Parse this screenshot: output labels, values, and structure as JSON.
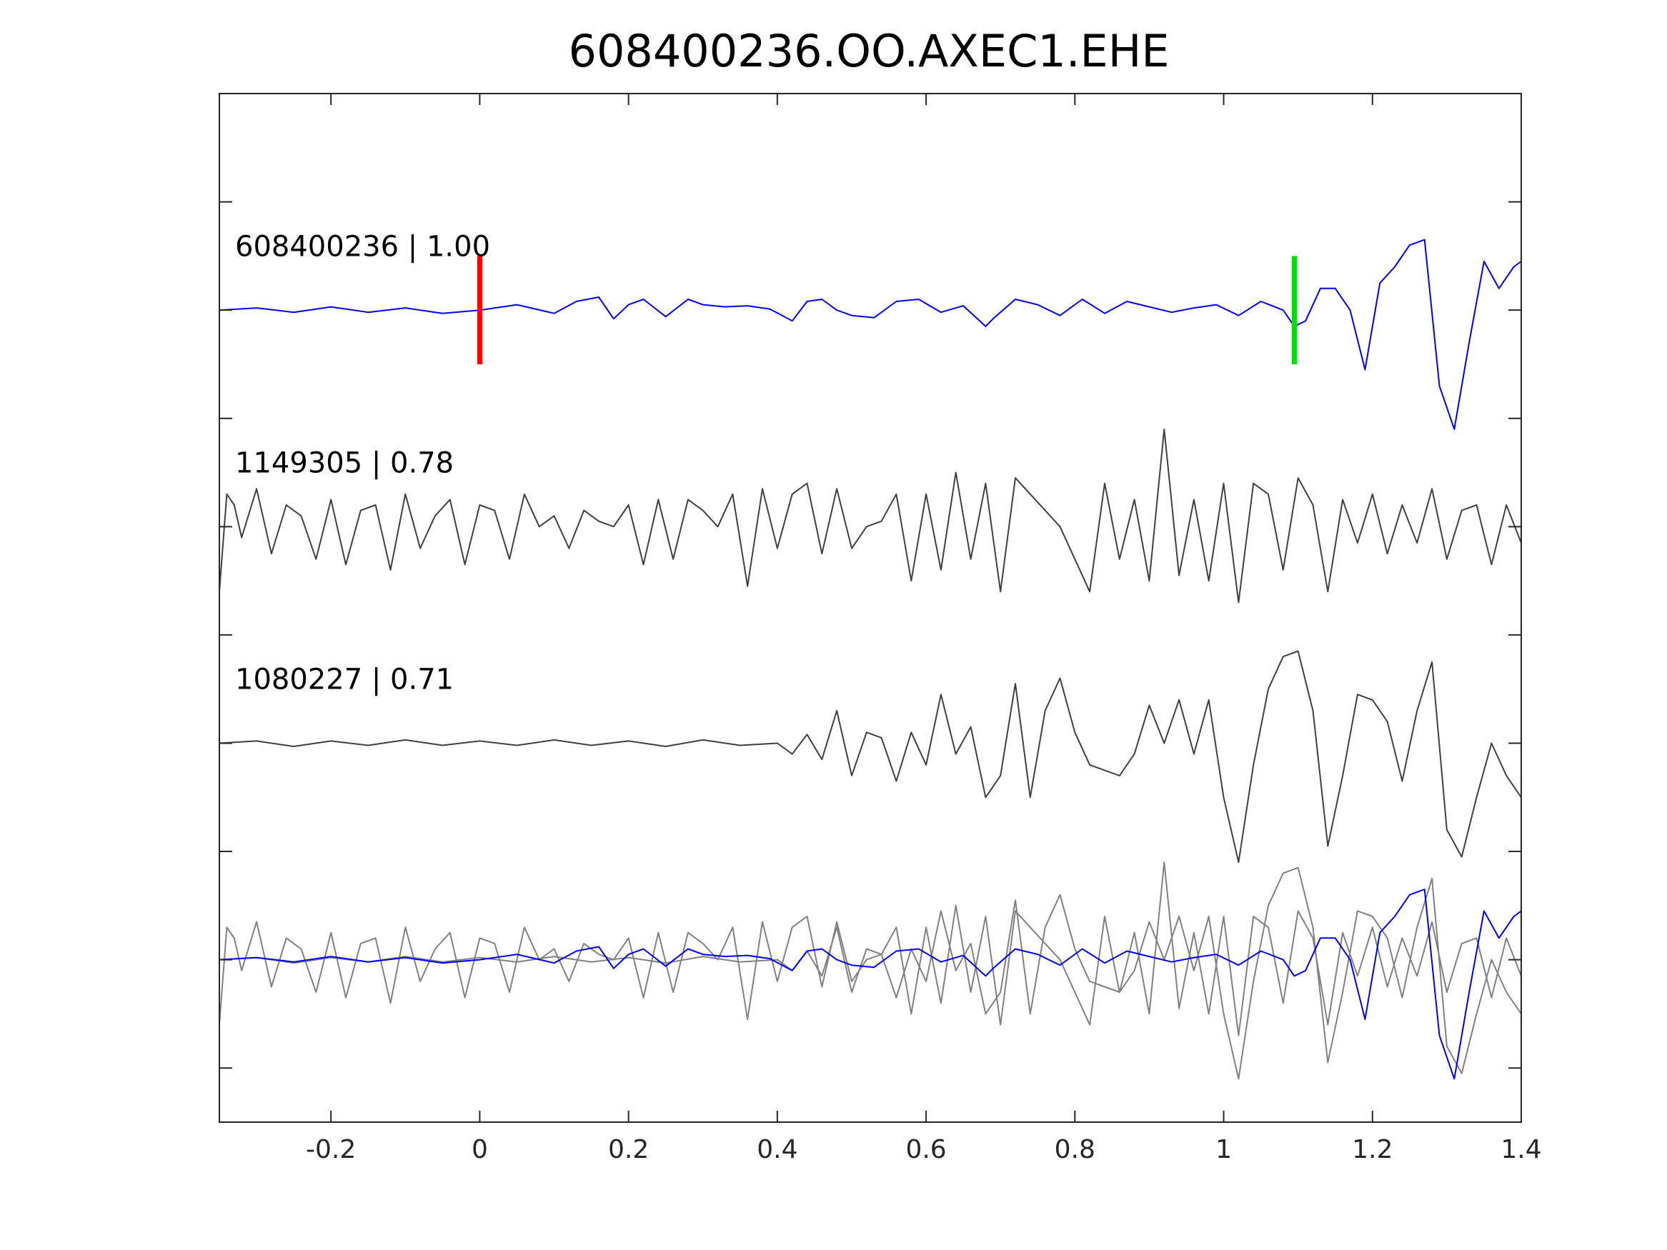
{
  "chart_data": {
    "type": "line",
    "title": "608400236.OO.AXEC1.EHE",
    "xlabel": "",
    "ylabel": "",
    "xlim": [
      -0.35,
      1.4
    ],
    "ylim": [
      -0.5,
      9.0
    ],
    "xticks": [
      -0.2,
      0,
      0.2,
      0.4,
      0.6,
      0.8,
      1,
      1.2,
      1.4
    ],
    "xtick_labels": [
      "-0.2",
      "0",
      "0.2",
      "0.4",
      "0.6",
      "0.8",
      "1",
      "1.2",
      "1.4"
    ],
    "yticks": [
      0,
      1,
      2,
      3,
      4,
      5,
      6,
      7,
      8
    ],
    "ytick_labels": [],
    "grid": false,
    "colors": {
      "template": "#0000ff",
      "neighbor": "#404040",
      "overlay_neighbor": "#808080",
      "pick_marker_p": "#ff0000",
      "pick_marker_s": "#00e000"
    },
    "markers": [
      {
        "x": 0.0,
        "color": "#ff0000"
      },
      {
        "x": 1.095,
        "color": "#00e000"
      }
    ],
    "series": [
      {
        "name": "608400236 | 1.00",
        "role": "template",
        "offset": 7,
        "x": [
          -0.35,
          -0.3,
          -0.25,
          -0.2,
          -0.15,
          -0.1,
          -0.05,
          0.0,
          0.05,
          0.1,
          0.13,
          0.16,
          0.18,
          0.2,
          0.22,
          0.25,
          0.28,
          0.3,
          0.33,
          0.36,
          0.39,
          0.42,
          0.44,
          0.46,
          0.48,
          0.5,
          0.53,
          0.56,
          0.59,
          0.62,
          0.65,
          0.68,
          0.69,
          0.72,
          0.75,
          0.78,
          0.81,
          0.84,
          0.87,
          0.9,
          0.93,
          0.96,
          0.99,
          1.02,
          1.05,
          1.08,
          1.095,
          1.11,
          1.13,
          1.15,
          1.17,
          1.19,
          1.21,
          1.23,
          1.25,
          1.27,
          1.29,
          1.31,
          1.33,
          1.35,
          1.37,
          1.39,
          1.4
        ],
        "y": [
          0.0,
          0.02,
          -0.02,
          0.03,
          -0.02,
          0.02,
          -0.03,
          0.0,
          0.05,
          -0.03,
          0.08,
          0.12,
          -0.08,
          0.05,
          0.1,
          -0.06,
          0.1,
          0.05,
          0.03,
          0.04,
          0.01,
          -0.1,
          0.08,
          0.1,
          0.0,
          -0.05,
          -0.07,
          0.08,
          0.1,
          -0.02,
          0.04,
          -0.15,
          -0.08,
          0.1,
          0.05,
          -0.05,
          0.1,
          -0.03,
          0.08,
          0.03,
          -0.02,
          0.02,
          0.05,
          -0.05,
          0.08,
          0.0,
          -0.15,
          -0.1,
          0.2,
          0.2,
          0.0,
          -0.55,
          0.25,
          0.4,
          0.6,
          0.65,
          -0.7,
          -1.1,
          -0.3,
          0.45,
          0.2,
          0.4,
          0.45
        ]
      },
      {
        "name": "1149305 | 0.78",
        "role": "neighbor",
        "offset": 5,
        "x": [
          -0.35,
          -0.34,
          -0.33,
          -0.32,
          -0.3,
          -0.28,
          -0.26,
          -0.24,
          -0.22,
          -0.2,
          -0.18,
          -0.16,
          -0.14,
          -0.12,
          -0.1,
          -0.08,
          -0.06,
          -0.04,
          -0.02,
          0.0,
          0.02,
          0.04,
          0.06,
          0.08,
          0.1,
          0.12,
          0.14,
          0.16,
          0.18,
          0.2,
          0.22,
          0.24,
          0.26,
          0.28,
          0.3,
          0.32,
          0.34,
          0.36,
          0.38,
          0.4,
          0.42,
          0.44,
          0.46,
          0.48,
          0.5,
          0.52,
          0.54,
          0.56,
          0.58,
          0.6,
          0.62,
          0.64,
          0.66,
          0.68,
          0.7,
          0.72,
          0.74,
          0.76,
          0.78,
          0.8,
          0.82,
          0.84,
          0.86,
          0.88,
          0.9,
          0.92,
          0.94,
          0.96,
          0.98,
          1.0,
          1.02,
          1.04,
          1.06,
          1.08,
          1.1,
          1.12,
          1.14,
          1.16,
          1.18,
          1.2,
          1.22,
          1.24,
          1.26,
          1.28,
          1.3,
          1.32,
          1.34,
          1.36,
          1.38,
          1.4
        ],
        "y": [
          -0.6,
          0.3,
          0.2,
          -0.1,
          0.35,
          -0.25,
          0.2,
          0.1,
          -0.3,
          0.25,
          -0.35,
          0.15,
          0.2,
          -0.4,
          0.3,
          -0.2,
          0.1,
          0.25,
          -0.35,
          0.2,
          0.15,
          -0.3,
          0.3,
          0.0,
          0.1,
          -0.2,
          0.15,
          0.05,
          0.0,
          0.2,
          -0.35,
          0.25,
          -0.3,
          0.25,
          0.15,
          0.0,
          0.3,
          -0.55,
          0.35,
          -0.2,
          0.3,
          0.4,
          -0.25,
          0.35,
          -0.2,
          0.0,
          0.05,
          0.3,
          -0.5,
          0.3,
          -0.4,
          0.5,
          -0.3,
          0.4,
          -0.6,
          0.45,
          0.3,
          0.15,
          0.0,
          -0.3,
          -0.6,
          0.4,
          -0.3,
          0.25,
          -0.5,
          0.9,
          -0.45,
          0.25,
          -0.5,
          0.4,
          -0.7,
          0.4,
          0.3,
          -0.4,
          0.45,
          0.2,
          -0.6,
          0.25,
          -0.15,
          0.3,
          -0.25,
          0.2,
          -0.15,
          0.35,
          -0.3,
          0.15,
          0.2,
          -0.35,
          0.2,
          -0.15
        ]
      },
      {
        "name": "1080227 | 0.71",
        "role": "neighbor",
        "offset": 3,
        "x": [
          -0.35,
          -0.3,
          -0.25,
          -0.2,
          -0.15,
          -0.1,
          -0.05,
          0.0,
          0.05,
          0.1,
          0.15,
          0.2,
          0.25,
          0.3,
          0.35,
          0.4,
          0.42,
          0.44,
          0.46,
          0.48,
          0.5,
          0.52,
          0.54,
          0.56,
          0.58,
          0.6,
          0.62,
          0.64,
          0.66,
          0.68,
          0.7,
          0.72,
          0.74,
          0.76,
          0.78,
          0.8,
          0.82,
          0.84,
          0.86,
          0.88,
          0.9,
          0.92,
          0.94,
          0.96,
          0.98,
          1.0,
          1.02,
          1.04,
          1.06,
          1.08,
          1.1,
          1.12,
          1.14,
          1.16,
          1.18,
          1.2,
          1.22,
          1.24,
          1.26,
          1.28,
          1.3,
          1.32,
          1.34,
          1.36,
          1.38,
          1.4
        ],
        "y": [
          0.0,
          0.02,
          -0.03,
          0.02,
          -0.02,
          0.03,
          -0.02,
          0.02,
          -0.02,
          0.03,
          -0.02,
          0.02,
          -0.03,
          0.03,
          -0.02,
          0.0,
          -0.1,
          0.08,
          -0.15,
          0.3,
          -0.3,
          0.1,
          0.05,
          -0.35,
          0.1,
          -0.2,
          0.45,
          -0.1,
          0.15,
          -0.5,
          -0.3,
          0.55,
          -0.5,
          0.3,
          0.6,
          0.1,
          -0.2,
          -0.25,
          -0.3,
          -0.1,
          0.35,
          0.0,
          0.4,
          -0.1,
          0.4,
          -0.5,
          -1.1,
          -0.2,
          0.5,
          0.8,
          0.85,
          0.3,
          -0.95,
          -0.3,
          0.45,
          0.4,
          0.2,
          -0.35,
          0.3,
          0.75,
          -0.8,
          -1.05,
          -0.5,
          0.0,
          -0.3,
          -0.5
        ]
      },
      {
        "name": "",
        "role": "overlay",
        "offset": 1,
        "note_series": [
          "608400236",
          "1149305",
          "1080227"
        ]
      }
    ],
    "labels": [
      {
        "text": "608400236 | 1.00",
        "series": 0
      },
      {
        "text": "1149305 | 0.78",
        "series": 1
      },
      {
        "text": "1080227 | 0.71",
        "series": 2
      }
    ]
  }
}
